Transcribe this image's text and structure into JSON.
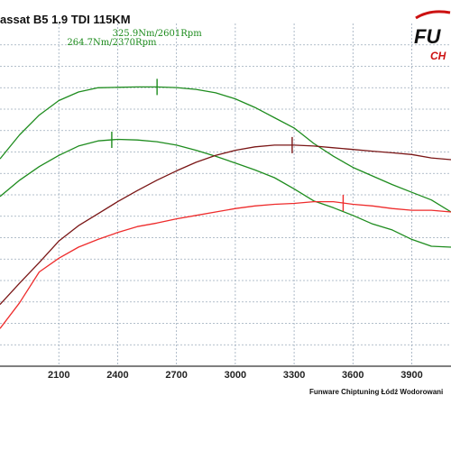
{
  "title": "assat B5 1.9 TDI 115KM",
  "logo_text": "FU CH",
  "credit": "Funware Chiptuning Łódź Wodorowani",
  "colors": {
    "green": "#1e8c1e",
    "dark_red": "#7a1616",
    "red": "#ee2c2c",
    "grid": "#9aaabb",
    "logo_red": "#cc1111"
  },
  "chart_data": {
    "type": "line",
    "title": "assat B5 1.9 TDI 115KM",
    "xlabel": "",
    "ylabel": "",
    "xlim": [
      1800,
      4100
    ],
    "ylim": [
      0,
      400
    ],
    "x_ticks": [
      2100,
      2400,
      2700,
      3000,
      3300,
      3600,
      3900
    ],
    "grid": true,
    "annotations": [
      {
        "text": "325.9Nm/2601Rpm",
        "x": 2601,
        "y": 326
      },
      {
        "text": "264.7Nm/2370Rpm",
        "x": 2370,
        "y": 265
      }
    ],
    "series": [
      {
        "color": "#1e8c1e",
        "x": [
          1800,
          1900,
          2000,
          2100,
          2200,
          2300,
          2400,
          2500,
          2600,
          2700,
          2800,
          2900,
          3000,
          3100,
          3200,
          3300,
          3400,
          3500,
          3600,
          3700,
          3800,
          3900,
          4000,
          4100
        ],
        "y": [
          242,
          270,
          293,
          310,
          320,
          325,
          325.5,
          325.9,
          325.9,
          325.2,
          323,
          319,
          312,
          302,
          290,
          278,
          260,
          245,
          232,
          222,
          212,
          203,
          194,
          180
        ],
        "marker_x": 2601
      },
      {
        "color": "#1e8c1e",
        "x": [
          1800,
          1900,
          2000,
          2100,
          2200,
          2300,
          2400,
          2500,
          2600,
          2700,
          2800,
          2900,
          3000,
          3100,
          3200,
          3300,
          3400,
          3500,
          3600,
          3700,
          3800,
          3900,
          4000,
          4100
        ],
        "y": [
          198,
          217,
          233,
          246,
          257,
          263,
          264.7,
          264,
          262,
          258,
          252,
          245,
          237,
          229,
          220,
          207,
          193,
          185,
          176,
          166,
          159,
          148,
          140,
          139
        ],
        "marker_x": 2370
      },
      {
        "color": "#7a1616",
        "x": [
          1800,
          1900,
          2000,
          2100,
          2200,
          2300,
          2400,
          2500,
          2600,
          2700,
          2800,
          2900,
          3000,
          3100,
          3200,
          3300,
          3400,
          3500,
          3600,
          3700,
          3800,
          3900,
          4000,
          4100
        ],
        "y": [
          72,
          97,
          121,
          146,
          164,
          178,
          192,
          205,
          217,
          228,
          238,
          246,
          252,
          256,
          258,
          258,
          257,
          255,
          253,
          251,
          249,
          247,
          243,
          241
        ],
        "marker_x": 3290
      },
      {
        "color": "#ee2c2c",
        "x": [
          1800,
          1900,
          2000,
          2100,
          2200,
          2300,
          2400,
          2500,
          2600,
          2700,
          2800,
          2900,
          3000,
          3100,
          3200,
          3300,
          3400,
          3500,
          3600,
          3700,
          3800,
          3900,
          4000,
          4100
        ],
        "y": [
          44,
          74,
          110,
          126,
          139,
          148,
          156,
          163,
          167,
          172,
          176,
          180,
          184,
          187,
          189,
          190,
          192,
          192,
          189,
          187,
          184,
          182,
          182,
          180
        ],
        "marker_x": 3550
      }
    ]
  }
}
